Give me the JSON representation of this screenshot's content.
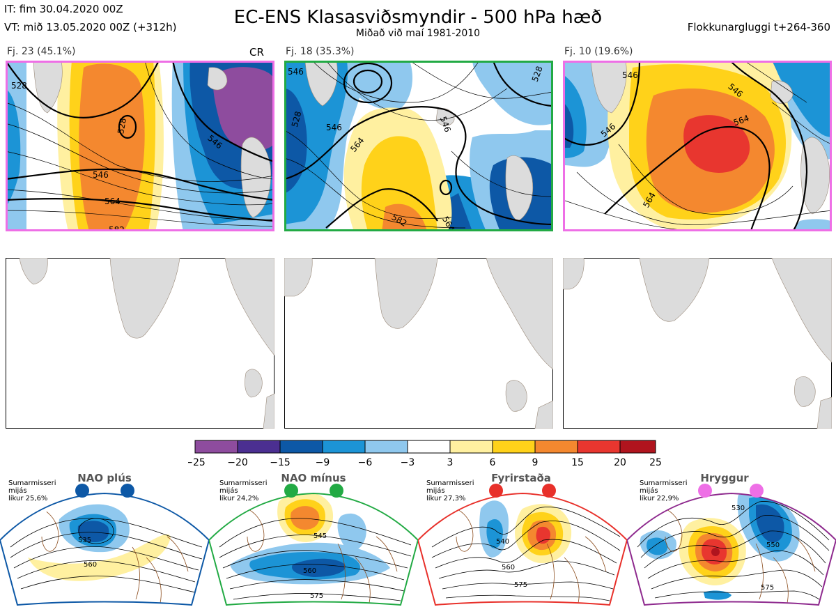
{
  "header": {
    "it": "IT: fim 30.04.2020 00Z",
    "vt": "VT: mið 13.05.2020 00Z  (+312h)",
    "title": "EC-ENS Klasasviðsmyndir - 500 hPa hæð",
    "subtitle": "Miðað við maí 1981-2010",
    "window": "Flokkunargluggi t+264-360"
  },
  "colors": {
    "border_1": "#ee6fe6",
    "border_2": "#22aa44",
    "border_3": "#ee6fe6",
    "land": "#dcdcdc",
    "coast": "#9a8a7a"
  },
  "clusters": [
    {
      "label": "Fj. 23 (45.1%)",
      "tag": "CR",
      "contours": [
        "528",
        "528",
        "546",
        "546",
        "564",
        "582"
      ]
    },
    {
      "label": "Fj. 18 (35.3%)",
      "tag": "",
      "contours": [
        "546",
        "528",
        "546",
        "564",
        "546",
        "582",
        "564",
        "528"
      ]
    },
    {
      "label": "Fj. 10 (19.6%)",
      "tag": "",
      "contours": [
        "546",
        "546",
        "564",
        "546",
        "564"
      ]
    }
  ],
  "colorbar": {
    "ticks": [
      "−25",
      "−20",
      "−15",
      "−9",
      "−6",
      "−3",
      "3",
      "6",
      "9",
      "15",
      "20",
      "25"
    ],
    "colors": [
      "#8e4c9e",
      "#4b2f91",
      "#0d58a6",
      "#1c94d6",
      "#8fc8ee",
      "#ffffff",
      "#fff0a0",
      "#ffd21a",
      "#f4882f",
      "#e8362f",
      "#b0141e"
    ]
  },
  "regimes": [
    {
      "name": "NAO plús",
      "text": "Sumarmisseri\nmijás\nlíkur 25,6%",
      "color": "#0d58a6",
      "labels": [
        "535",
        "560"
      ]
    },
    {
      "name": "NAO mínus",
      "text": "Sumarmisseri\nmijás\nlíkur 24,2%",
      "color": "#22aa44",
      "labels": [
        "545",
        "560",
        "575"
      ]
    },
    {
      "name": "Fyrirstaða",
      "text": "Sumarmisseri\nmijás\nlíkur 27,3%",
      "color": "#e8302a",
      "labels": [
        "540",
        "560",
        "575"
      ]
    },
    {
      "name": "Hryggur",
      "text": "Sumarmisseri\nmijás\nlíkur 22,9%",
      "color": "#ee6fe6",
      "labels": [
        "530",
        "550",
        "575"
      ]
    }
  ]
}
